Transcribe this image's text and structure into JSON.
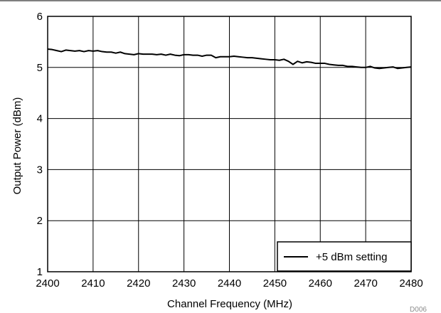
{
  "chart_data": {
    "type": "line",
    "xlabel": "Channel Frequency (MHz)",
    "ylabel": "Output Power (dBm)",
    "xlim": [
      2400,
      2480
    ],
    "ylim": [
      1,
      6
    ],
    "xticks": [
      2400,
      2410,
      2420,
      2430,
      2440,
      2450,
      2460,
      2470,
      2480
    ],
    "yticks": [
      1,
      2,
      3,
      4,
      5,
      6
    ],
    "grid": true,
    "legend_position": "bottom-right",
    "figure_code": "D006",
    "series": [
      {
        "name": "+5 dBm setting",
        "color": "#000000",
        "x": [
          2400,
          2401,
          2402,
          2403,
          2404,
          2405,
          2406,
          2407,
          2408,
          2409,
          2410,
          2411,
          2412,
          2413,
          2414,
          2415,
          2416,
          2417,
          2418,
          2419,
          2420,
          2421,
          2422,
          2423,
          2424,
          2425,
          2426,
          2427,
          2428,
          2429,
          2430,
          2431,
          2432,
          2433,
          2434,
          2435,
          2436,
          2437,
          2438,
          2439,
          2440,
          2441,
          2442,
          2443,
          2444,
          2445,
          2446,
          2447,
          2448,
          2449,
          2450,
          2451,
          2452,
          2453,
          2454,
          2455,
          2456,
          2457,
          2458,
          2459,
          2460,
          2461,
          2462,
          2463,
          2464,
          2465,
          2466,
          2467,
          2468,
          2469,
          2470,
          2471,
          2472,
          2473,
          2474,
          2475,
          2476,
          2477,
          2478,
          2479,
          2480
        ],
        "y": [
          5.36,
          5.35,
          5.33,
          5.31,
          5.34,
          5.33,
          5.32,
          5.33,
          5.31,
          5.33,
          5.32,
          5.33,
          5.31,
          5.3,
          5.3,
          5.28,
          5.3,
          5.27,
          5.26,
          5.25,
          5.27,
          5.26,
          5.26,
          5.26,
          5.25,
          5.26,
          5.24,
          5.26,
          5.24,
          5.23,
          5.25,
          5.25,
          5.24,
          5.24,
          5.22,
          5.24,
          5.24,
          5.19,
          5.21,
          5.21,
          5.21,
          5.22,
          5.21,
          5.2,
          5.19,
          5.19,
          5.18,
          5.17,
          5.16,
          5.15,
          5.15,
          5.14,
          5.16,
          5.12,
          5.06,
          5.12,
          5.09,
          5.11,
          5.1,
          5.08,
          5.08,
          5.08,
          5.06,
          5.05,
          5.04,
          5.04,
          5.02,
          5.02,
          5.01,
          5.0,
          5.0,
          5.02,
          4.99,
          4.98,
          4.99,
          5.0,
          5.01,
          4.98,
          4.99,
          5.0,
          5.01
        ]
      }
    ]
  }
}
